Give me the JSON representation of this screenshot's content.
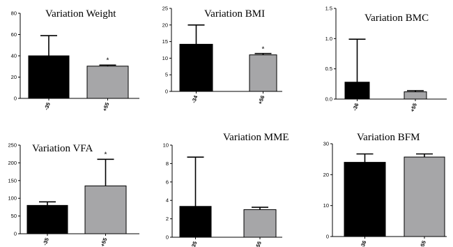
{
  "colors": {
    "bar_a": "#000000",
    "bar_b": "#a6a6a8",
    "axis": "#000000"
  },
  "chart_data": [
    {
      "type": "bar",
      "title": "Variation Weight",
      "categories": [
        "-35",
        "+55"
      ],
      "values": [
        40,
        30.3
      ],
      "errors": [
        19,
        1
      ],
      "annotations": [
        "",
        "*"
      ],
      "ylim": [
        0,
        80
      ],
      "yticks": [
        "0",
        "20",
        "40",
        "60",
        "80"
      ]
    },
    {
      "type": "bar",
      "title": "Variation BMI",
      "categories": [
        "-34",
        "+56"
      ],
      "values": [
        14.2,
        11.0
      ],
      "errors": [
        5.8,
        0.4
      ],
      "annotations": [
        "",
        "*"
      ],
      "ylim": [
        0,
        25
      ],
      "yticks": [
        "0",
        "5",
        "10",
        "15",
        "20",
        "25"
      ]
    },
    {
      "type": "bar",
      "title": "Variation BMC",
      "categories": [
        "-36",
        "+55"
      ],
      "values": [
        0.28,
        0.12
      ],
      "errors": [
        0.71,
        0.02
      ],
      "annotations": [
        "",
        ""
      ],
      "ylim": [
        0,
        1.5
      ],
      "yticks": [
        "0.0",
        "0.5",
        "1.0",
        "1.5"
      ]
    },
    {
      "type": "bar",
      "title": "Variation VFA",
      "categories": [
        "-35",
        "+55"
      ],
      "values": [
        80,
        135
      ],
      "errors": [
        10,
        75
      ],
      "annotations": [
        "",
        "*"
      ],
      "ylim": [
        0,
        250
      ],
      "yticks": [
        "0",
        "50",
        "100",
        "150",
        "200",
        "250"
      ]
    },
    {
      "type": "bar",
      "title": "Variation MME",
      "categories": [
        "-35",
        "+55"
      ],
      "values": [
        3.35,
        3.0
      ],
      "errors": [
        5.35,
        0.25
      ],
      "annotations": [
        "",
        ""
      ],
      "ylim": [
        0,
        10
      ],
      "yticks": [
        "0",
        "2",
        "4",
        "6",
        "8",
        "10"
      ]
    },
    {
      "type": "bar",
      "title": "Variation BFM",
      "categories": [
        "-36",
        "+55"
      ],
      "values": [
        24,
        25.7
      ],
      "errors": [
        2.7,
        1.0
      ],
      "annotations": [
        "",
        ""
      ],
      "ylim": [
        0,
        30
      ],
      "yticks": [
        "0",
        "10",
        "20",
        "30"
      ]
    }
  ]
}
